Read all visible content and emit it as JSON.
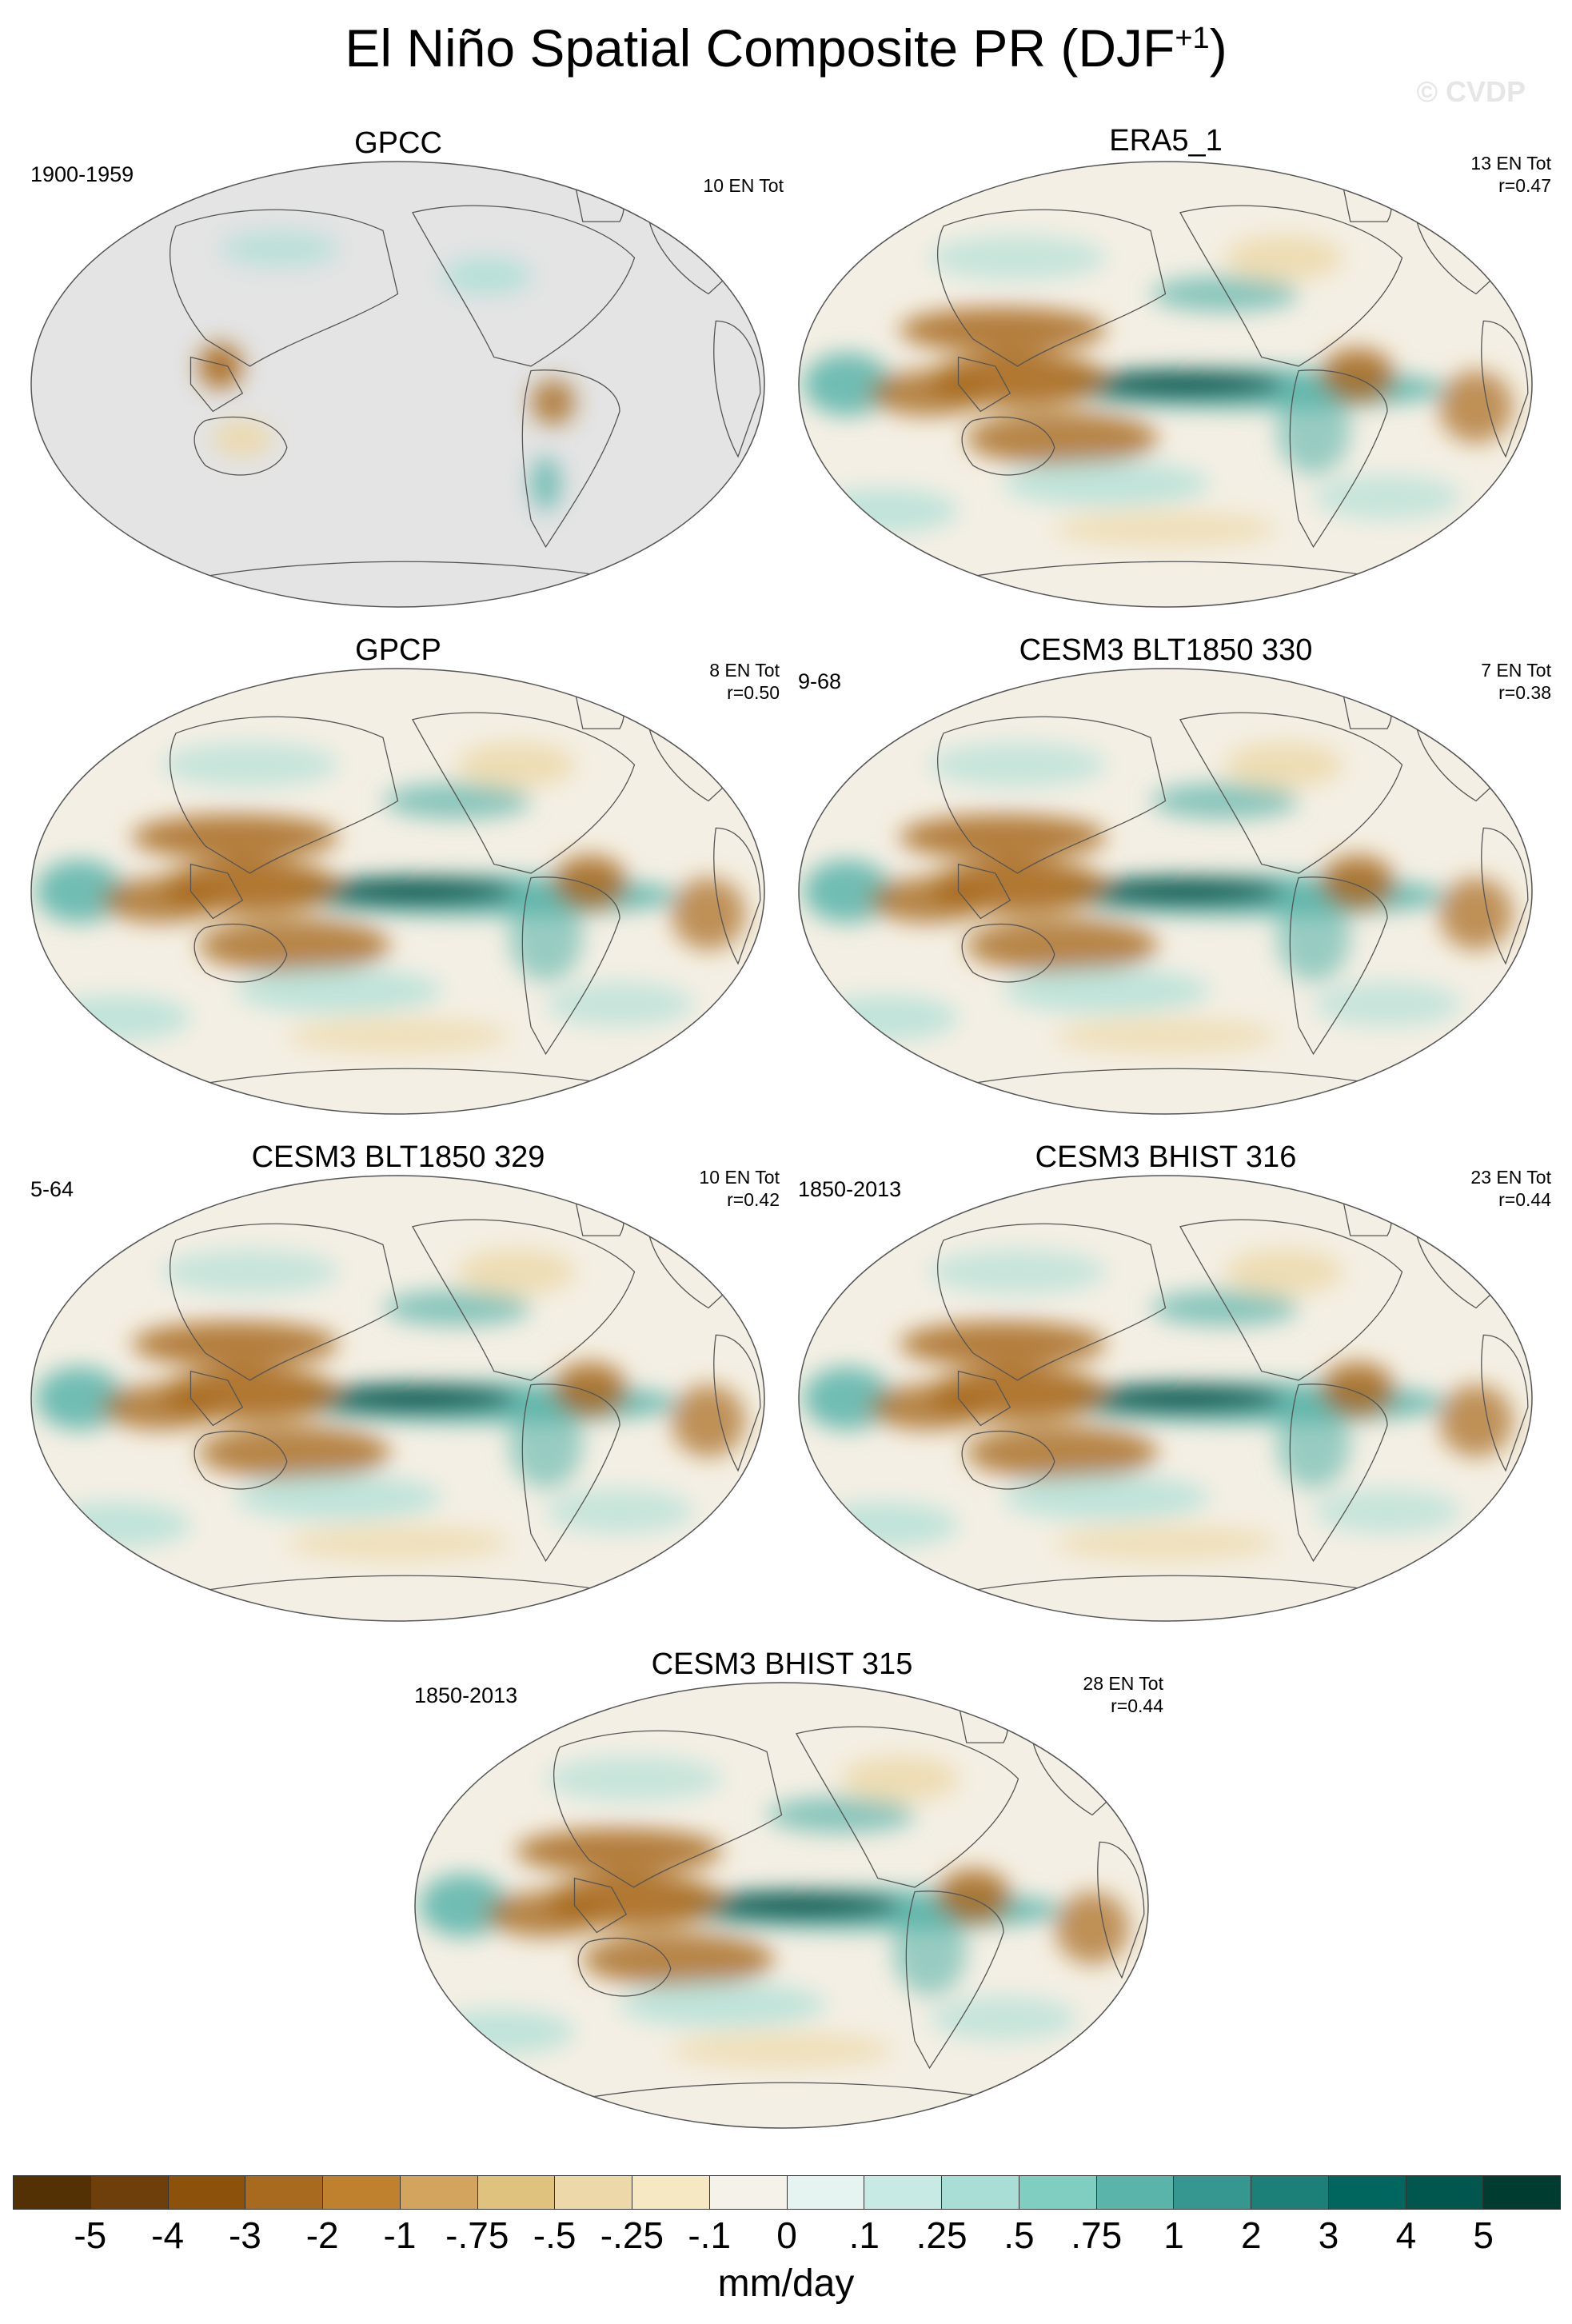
{
  "title": {
    "main": "El Niño Spatial Composite PR (DJF",
    "superscript": "+1",
    "close": ")"
  },
  "watermark": "© CVDP",
  "panels": [
    {
      "title": "GPCC",
      "period": "1900-1959",
      "count": "10 EN Tot",
      "r": "",
      "land_only": true
    },
    {
      "title": "ERA5_1",
      "period": "",
      "count": "13 EN Tot",
      "r": "r=0.47",
      "land_only": false
    },
    {
      "title": "GPCP",
      "period": "",
      "count": "8 EN Tot",
      "r": "r=0.50",
      "land_only": false
    },
    {
      "title": "CESM3 BLT1850 330",
      "period": "9-68",
      "count": "7 EN Tot",
      "r": "r=0.38",
      "land_only": false
    },
    {
      "title": "CESM3 BLT1850 329",
      "period": "5-64",
      "count": "10 EN Tot",
      "r": "r=0.42",
      "land_only": false
    },
    {
      "title": "CESM3 BHIST 316",
      "period": "1850-2013",
      "count": "23 EN Tot",
      "r": "r=0.44",
      "land_only": false
    },
    {
      "title": "CESM3 BHIST 315",
      "period": "1850-2013",
      "count": "28 EN Tot",
      "r": "r=0.44",
      "land_only": false
    }
  ],
  "colorbar": {
    "units": "mm/day",
    "labels": [
      "-5",
      "-4",
      "-3",
      "-2",
      "-1",
      "-.75",
      "-.5",
      "-.25",
      "-.1",
      "0",
      ".1",
      ".25",
      ".5",
      ".75",
      "1",
      "2",
      "3",
      "4",
      "5"
    ],
    "colors": [
      "#543005",
      "#6f3f0b",
      "#8c510a",
      "#a86a1e",
      "#bf812d",
      "#d3a45e",
      "#dfc27d",
      "#ecd8a8",
      "#f6e8c3",
      "#f5f2ea",
      "#e6f4f1",
      "#c7eae5",
      "#a9ded6",
      "#80cdc1",
      "#5ab4aa",
      "#35978f",
      "#1c7f78",
      "#01665e",
      "#01564e",
      "#003c30"
    ]
  },
  "map_colors": {
    "ocean_background": "#f4efe4",
    "land_mask": "#e4e4e4",
    "coastline": "#555555",
    "dry": "#a86a1e",
    "dry_strong": "#8c510a",
    "wet": "#5ab4aa",
    "wet_strong": "#01564e",
    "wet_light": "#a9ded6",
    "dry_light": "#ecd8a8"
  }
}
